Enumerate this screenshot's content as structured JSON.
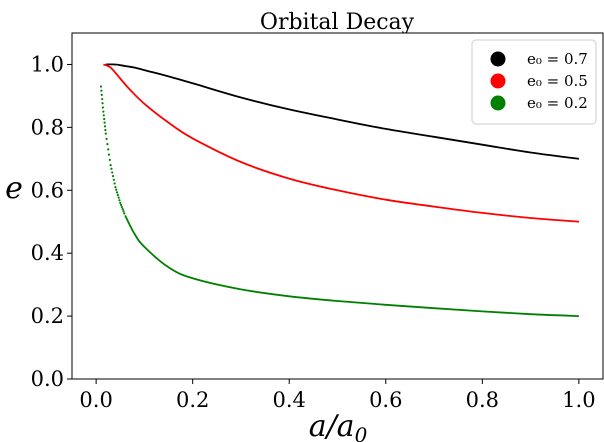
{
  "chart_data": {
    "type": "line",
    "title": "Orbital Decay",
    "xlabel": "a/a₀",
    "ylabel": "e",
    "xlim": [
      -0.05,
      1.05
    ],
    "ylim": [
      0.0,
      1.1
    ],
    "x_ticks": [
      "0.0",
      "0.2",
      "0.4",
      "0.6",
      "0.8",
      "1.0"
    ],
    "y_ticks": [
      "0.0",
      "0.2",
      "0.4",
      "0.6",
      "0.8",
      "1.0"
    ],
    "grid": false,
    "legend_position": "top-right",
    "series": [
      {
        "name": "e₀ = 0.7",
        "color": "#000000",
        "style": "solid",
        "x": [
          0.02,
          0.04,
          0.06,
          0.08,
          0.1,
          0.15,
          0.2,
          0.3,
          0.4,
          0.5,
          0.6,
          0.7,
          0.8,
          0.9,
          1.0
        ],
        "y": [
          1.0,
          1.0,
          0.995,
          0.99,
          0.982,
          0.962,
          0.94,
          0.895,
          0.857,
          0.825,
          0.795,
          0.77,
          0.745,
          0.72,
          0.7
        ]
      },
      {
        "name": "e₀ = 0.5",
        "color": "#ff0000",
        "style": "solid",
        "x": [
          0.015,
          0.03,
          0.05,
          0.07,
          0.1,
          0.15,
          0.2,
          0.3,
          0.4,
          0.5,
          0.6,
          0.7,
          0.8,
          0.9,
          1.0
        ],
        "y": [
          1.0,
          0.99,
          0.955,
          0.92,
          0.875,
          0.815,
          0.765,
          0.69,
          0.637,
          0.6,
          0.57,
          0.548,
          0.528,
          0.512,
          0.5
        ]
      },
      {
        "name": "e₀ = 0.2",
        "color": "#008000",
        "style": "dotted-start",
        "x": [
          0.01,
          0.015,
          0.02,
          0.03,
          0.04,
          0.05,
          0.06,
          0.08,
          0.1,
          0.15,
          0.2,
          0.3,
          0.4,
          0.5,
          0.6,
          0.7,
          0.8,
          0.9,
          1.0
        ],
        "y": [
          0.93,
          0.85,
          0.78,
          0.68,
          0.61,
          0.56,
          0.52,
          0.46,
          0.42,
          0.355,
          0.32,
          0.285,
          0.263,
          0.248,
          0.236,
          0.225,
          0.215,
          0.206,
          0.2
        ]
      }
    ]
  }
}
